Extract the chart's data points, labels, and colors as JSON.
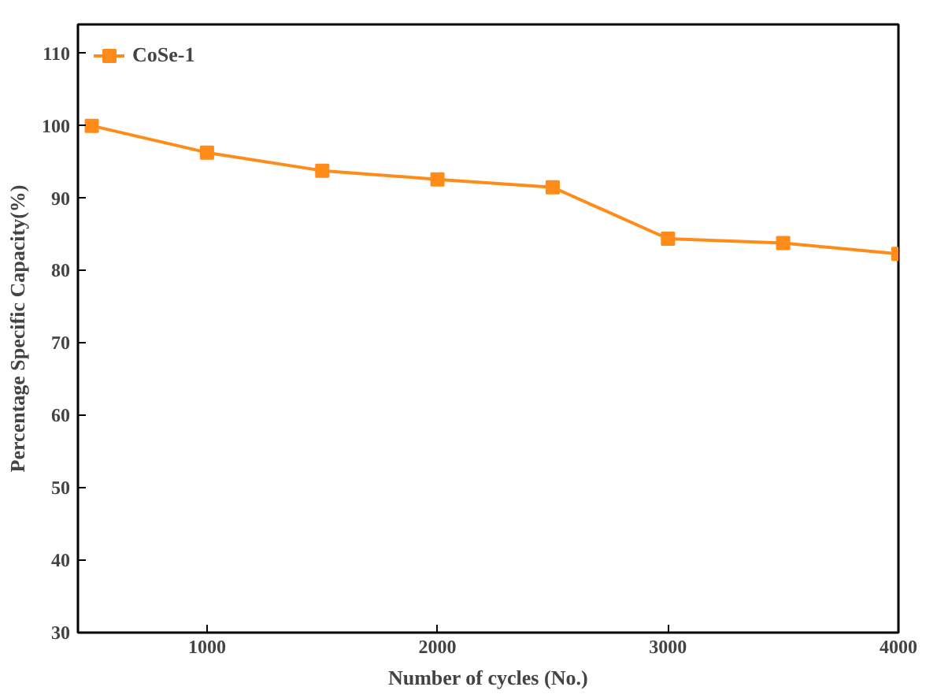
{
  "chart_data": {
    "type": "line",
    "xlabel": "Number of cycles (No.)",
    "ylabel": "Percentage Specific Capacity(%)",
    "x": [
      500,
      1000,
      1500,
      2000,
      2500,
      3000,
      3500,
      4000
    ],
    "series": [
      {
        "name": "CoSe-1",
        "color": "#ff8c1a",
        "values": [
          100,
          96.3,
          93.8,
          92.6,
          91.5,
          84.4,
          83.8,
          82.3
        ]
      }
    ],
    "xlim": [
      440,
      4000
    ],
    "ylim": [
      30,
      114
    ],
    "xticks": [
      1000,
      2000,
      3000,
      4000
    ],
    "yticks": [
      30,
      40,
      50,
      60,
      70,
      80,
      90,
      100,
      110
    ],
    "marker": "square",
    "line_style": "solid",
    "legend": "top left",
    "grid": false
  }
}
